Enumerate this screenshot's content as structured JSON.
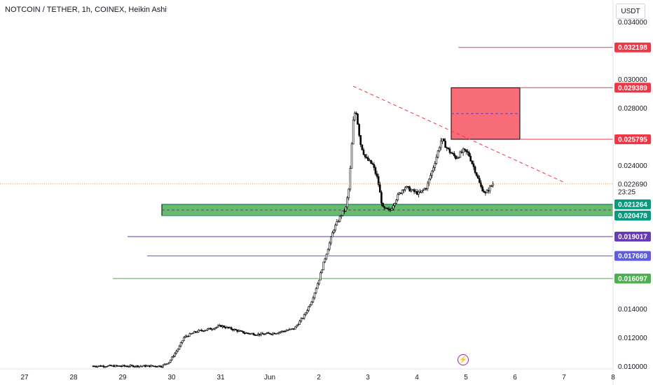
{
  "header": {
    "title": "NOTCOIN / TETHER, 1h, COINEX, Heikin Ashi",
    "currency": "USDT"
  },
  "chart_data": {
    "type": "candlestick",
    "style": "Heikin Ashi",
    "symbol": "NOTCOIN / TETHER",
    "interval": "1h",
    "exchange": "COINEX",
    "currency": "USDT",
    "y_range": [
      0.0098,
      0.0355
    ],
    "x_range": [
      26.5,
      39.0
    ],
    "y_ticks": [
      "0.034000",
      "0.030000",
      "0.028000",
      "0.024000",
      "0.022690",
      "0.014000",
      "0.012000",
      "0.010000"
    ],
    "x_ticks": [
      {
        "x": 27,
        "label": "27"
      },
      {
        "x": 28,
        "label": "28"
      },
      {
        "x": 29,
        "label": "29"
      },
      {
        "x": 30,
        "label": "30"
      },
      {
        "x": 31,
        "label": "31"
      },
      {
        "x": 32,
        "label": "Jun"
      },
      {
        "x": 33,
        "label": "2"
      },
      {
        "x": 34,
        "label": "3"
      },
      {
        "x": 35,
        "label": "4"
      },
      {
        "x": 36,
        "label": "5"
      },
      {
        "x": 37,
        "label": "6"
      },
      {
        "x": 38,
        "label": "7"
      },
      {
        "x": 39,
        "label": "8"
      }
    ],
    "current_price": {
      "value": 0.02269,
      "label": "0.022690",
      "countdown": "23:25",
      "color": "#f7a24a"
    },
    "price_path": [
      [
        28.4,
        0.01
      ],
      [
        29.2,
        0.01
      ],
      [
        29.8,
        0.01
      ],
      [
        29.95,
        0.0103
      ],
      [
        30.05,
        0.0108
      ],
      [
        30.15,
        0.0113
      ],
      [
        30.25,
        0.012
      ],
      [
        30.5,
        0.0124
      ],
      [
        30.8,
        0.0126
      ],
      [
        31.0,
        0.0128
      ],
      [
        31.2,
        0.0126
      ],
      [
        31.5,
        0.0123
      ],
      [
        31.8,
        0.0122
      ],
      [
        32.1,
        0.0123
      ],
      [
        32.5,
        0.0126
      ],
      [
        32.7,
        0.0135
      ],
      [
        32.85,
        0.0145
      ],
      [
        33.0,
        0.016
      ],
      [
        33.15,
        0.0178
      ],
      [
        33.3,
        0.0195
      ],
      [
        33.45,
        0.0205
      ],
      [
        33.55,
        0.021
      ],
      [
        33.62,
        0.0225
      ],
      [
        33.7,
        0.027
      ],
      [
        33.75,
        0.028
      ],
      [
        33.85,
        0.0255
      ],
      [
        33.95,
        0.0245
      ],
      [
        34.1,
        0.024
      ],
      [
        34.2,
        0.023
      ],
      [
        34.3,
        0.021
      ],
      [
        34.45,
        0.0208
      ],
      [
        34.6,
        0.0218
      ],
      [
        34.75,
        0.0225
      ],
      [
        34.9,
        0.0222
      ],
      [
        35.05,
        0.022
      ],
      [
        35.2,
        0.0225
      ],
      [
        35.35,
        0.024
      ],
      [
        35.5,
        0.0258
      ],
      [
        35.65,
        0.025
      ],
      [
        35.8,
        0.0245
      ],
      [
        35.95,
        0.025
      ],
      [
        36.05,
        0.0248
      ],
      [
        36.2,
        0.0235
      ],
      [
        36.3,
        0.0225
      ],
      [
        36.4,
        0.022
      ],
      [
        36.5,
        0.0225
      ],
      [
        36.55,
        0.0227
      ]
    ],
    "levels": [
      {
        "value": 0.032198,
        "label": "0.032198",
        "color": "#f23645",
        "x_from": 35.85
      },
      {
        "value": 0.029389,
        "label": "0.029389",
        "color": "#f23645",
        "x_from": 37.1
      },
      {
        "value": 0.025795,
        "label": "0.025795",
        "color": "#f23645",
        "x_from": 37.1
      },
      {
        "value": 0.021264,
        "label": "0.021264",
        "color": "#089981",
        "x_from": 29.8
      },
      {
        "value": 0.020478,
        "label": "0.020478",
        "color": "#089981",
        "x_from": 29.8
      },
      {
        "value": 0.019017,
        "label": "0.019017",
        "color": "#673ab7",
        "x_from": 29.1
      },
      {
        "value": 0.017669,
        "label": "0.017669",
        "color": "#5e5ce6",
        "x_from": 29.5
      },
      {
        "value": 0.016097,
        "label": "0.016097",
        "color": "#4caf50",
        "x_from": 28.8
      }
    ],
    "zones": [
      {
        "x_from": 29.8,
        "x_to": 39.0,
        "y_low": 0.020478,
        "y_high": 0.021264,
        "fill": "#4caf50",
        "midline": 0.02087
      },
      {
        "x_from": 35.7,
        "x_to": 37.1,
        "y_low": 0.025795,
        "y_high": 0.029389,
        "fill": "#f7525f",
        "midline": 0.02759
      }
    ],
    "trendline": {
      "from": [
        33.7,
        0.0295
      ],
      "to": [
        38.0,
        0.0228
      ],
      "color": "#f23645",
      "style": "dashed"
    }
  }
}
